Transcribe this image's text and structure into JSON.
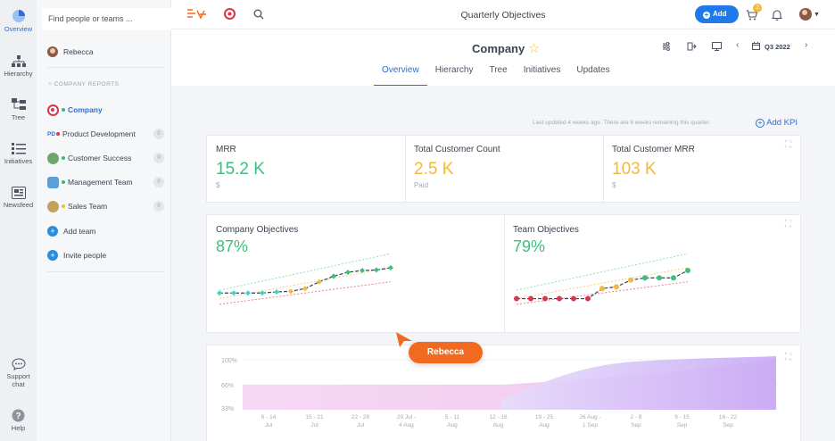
{
  "rail": {
    "items": [
      {
        "label": "Overview",
        "icon": "pie-chart-icon"
      },
      {
        "label": "Hierarchy",
        "icon": "hierarchy-icon"
      },
      {
        "label": "Tree",
        "icon": "tree-icon"
      },
      {
        "label": "Initiatives",
        "icon": "initiatives-icon"
      },
      {
        "label": "Newsfeed",
        "icon": "newsfeed-icon"
      },
      {
        "label": "Support chat",
        "icon": "chat-icon"
      },
      {
        "label": "Help",
        "icon": "help-icon"
      }
    ]
  },
  "sidebar": {
    "search_placeholder": "Find people or teams ...",
    "user": "Rebecca",
    "section_title": "COMPANY REPORTS",
    "teams": [
      {
        "label": "Company",
        "badge": ""
      },
      {
        "label": "Product Development",
        "prefix": "PD",
        "badge": "0"
      },
      {
        "label": "Customer Success",
        "badge": "0"
      },
      {
        "label": "Management Team",
        "badge": "0"
      },
      {
        "label": "Sales Team",
        "badge": "0"
      }
    ],
    "add_team": "Add team",
    "invite": "Invite people"
  },
  "topbar": {
    "title": "Quarterly Objectives",
    "add_label": "Add",
    "notif_count": "2"
  },
  "header": {
    "company": "Company",
    "period": "Q3 2022",
    "tabs": [
      "Overview",
      "Hierarchy",
      "Tree",
      "Initiatives",
      "Updates"
    ]
  },
  "main": {
    "updated": "Last updated 4 weeks ago. There are 8 weeks remaining this quarter.",
    "add_kpi": "Add KPI",
    "kpis": [
      {
        "name": "MRR",
        "value": "15.2 K",
        "unit": "$",
        "color": "#3dbf7f"
      },
      {
        "name": "Total Customer Count",
        "value": "2.5 K",
        "unit": "Paid",
        "color": "#f4b83a"
      },
      {
        "name": "Total Customer MRR",
        "value": "103 K",
        "unit": "$",
        "color": "#f4b83a"
      }
    ],
    "objectives": [
      {
        "name": "Company Objectives",
        "value": "87%"
      },
      {
        "name": "Team Objectives",
        "value": "79%"
      }
    ],
    "tooltip": "Rebecca"
  },
  "chart_data": [
    {
      "type": "line",
      "title": "Company Objectives",
      "series": [
        {
          "values": [
            25,
            25,
            25,
            25,
            27,
            28,
            33,
            45,
            55,
            62,
            65,
            66,
            70
          ]
        }
      ]
    },
    {
      "type": "line",
      "title": "Team Objectives",
      "series": [
        {
          "values": [
            15,
            15,
            15,
            15,
            15,
            15,
            33,
            36,
            48,
            52,
            52,
            52,
            65
          ]
        }
      ]
    },
    {
      "type": "area",
      "y_ticks": [
        "100%",
        "66%",
        "33%"
      ],
      "x_ticks": [
        "6 - 14 Jul",
        "15 - 21 Jul",
        "22 - 28 Jul",
        "29 Jul - 4 Aug",
        "5 - 11 Aug",
        "12 - 18 Aug",
        "19 - 25 Aug",
        "26 Aug - 1 Sep",
        "2 - 8 Sep",
        "9 - 15 Sep",
        "16 - 22 Sep"
      ]
    }
  ],
  "colors": {
    "accent": "#2c6fd6",
    "green": "#3dbf7f",
    "orange": "#f26a1f",
    "yellow": "#f4b83a",
    "red": "#d9384c"
  }
}
